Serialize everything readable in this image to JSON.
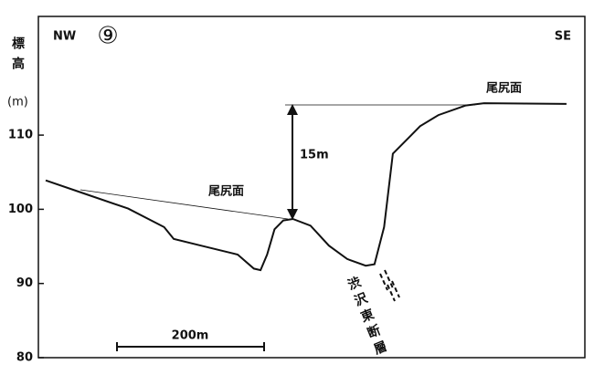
{
  "chart_data": {
    "type": "line",
    "title": "⑨",
    "left_label": "NW",
    "right_label": "SE",
    "y_label": "標高",
    "y_unit": "(m)",
    "x": [
      10,
      60,
      122,
      171,
      184,
      221,
      271,
      293,
      302,
      311,
      321,
      333,
      346,
      370,
      395,
      420,
      445,
      457,
      470,
      482,
      507,
      519,
      544,
      581,
      606,
      718
    ],
    "series": [
      {
        "color": "#111111",
        "values": [
          103.9,
          102.2,
          100.1,
          97.6,
          96.0,
          95.1,
          93.9,
          92.0,
          91.8,
          93.9,
          97.3,
          98.5,
          98.7,
          97.8,
          95.1,
          93.3,
          92.4,
          92.6,
          97.6,
          107.5,
          110.0,
          111.2,
          112.7,
          114.0,
          114.3,
          114.2
        ]
      }
    ],
    "xlim": [
      0,
      743
    ],
    "ylim": [
      80,
      126
    ],
    "yticks": [
      80,
      90,
      100,
      110
    ],
    "surface_label_left": "尾尻面",
    "surface_label_right": "尾尻面",
    "height_difference": "15m",
    "fault_label": "渋沢東断層",
    "scale_bar": "200m"
  }
}
